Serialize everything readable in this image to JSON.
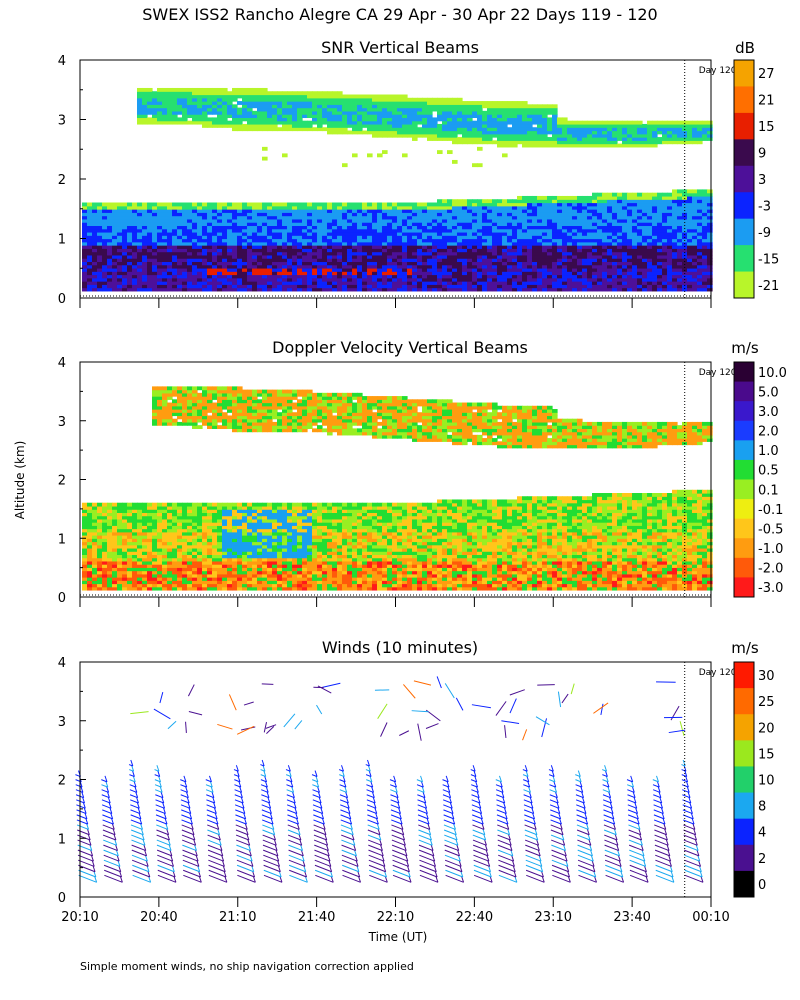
{
  "title": "SWEX ISS2 Rancho Alegre CA  29 Apr - 30 Apr 22 Days 119 - 120",
  "yaxis_label": "Altitude (km)",
  "xaxis_label": "Time (UT)",
  "footnote": "Simple moment winds, no ship navigation correction applied",
  "day_marker_label": "Day 120",
  "panels": [
    {
      "title": "SNR Vertical Beams",
      "unit": "dB"
    },
    {
      "title": "Doppler Velocity Vertical Beams",
      "unit": "m/s"
    },
    {
      "title": "Winds (10 minutes)",
      "unit": "m/s"
    }
  ],
  "chart_data": [
    {
      "type": "heatmap",
      "title": "SNR Vertical Beams",
      "xlabel": "",
      "ylabel": "Altitude (km)",
      "x_ticks": [
        "20:10",
        "20:40",
        "21:10",
        "21:40",
        "22:10",
        "22:40",
        "23:10",
        "23:40",
        "00:10"
      ],
      "y_ticks": [
        0,
        1,
        2,
        3,
        4
      ],
      "ylim": [
        0,
        4
      ],
      "colorbar": {
        "unit": "dB",
        "labels": [
          "27",
          "21",
          "15",
          "9",
          "3",
          "-3",
          "-9",
          "-15",
          "-21"
        ],
        "colors": [
          "#f5a300",
          "#ff6f00",
          "#e81f00",
          "#3a0a4d",
          "#4d1099",
          "#0b23ff",
          "#1b9cf2",
          "#26e070",
          "#b8f52a"
        ]
      },
      "layers": [
        {
          "description": "upper cloud layer",
          "altitude_km": [
            2.6,
            3.6
          ],
          "snr_db": [
            -21,
            -9
          ]
        },
        {
          "description": "boundary layer",
          "altitude_km": [
            0.1,
            1.8
          ],
          "snr_db": [
            -15,
            15
          ]
        }
      ],
      "day_boundary": "00:00"
    },
    {
      "type": "heatmap",
      "title": "Doppler Velocity Vertical Beams",
      "xlabel": "",
      "ylabel": "Altitude (km)",
      "x_ticks": [
        "20:10",
        "20:40",
        "21:10",
        "21:40",
        "22:10",
        "22:40",
        "23:10",
        "23:40",
        "00:10"
      ],
      "y_ticks": [
        0,
        1,
        2,
        3,
        4
      ],
      "ylim": [
        0,
        4
      ],
      "colorbar": {
        "unit": "m/s",
        "labels": [
          "10.0",
          "5.0",
          "3.0",
          "2.0",
          "1.0",
          "0.5",
          "0.1",
          "-0.1",
          "-0.5",
          "-1.0",
          "-2.0",
          "-3.0"
        ],
        "colors": [
          "#2a0033",
          "#4a0a8c",
          "#3a18cc",
          "#1a3cff",
          "#19a0f0",
          "#22dd33",
          "#99ee22",
          "#eeee11",
          "#ffc61a",
          "#ff9c10",
          "#ff5a0a",
          "#ff1a1a"
        ]
      },
      "layers": [
        {
          "description": "upper cloud layer",
          "altitude_km": [
            2.6,
            3.6
          ],
          "velocity_ms": [
            -1.0,
            0.1
          ]
        },
        {
          "description": "boundary layer",
          "altitude_km": [
            0.1,
            1.8
          ],
          "velocity_ms": [
            -3.0,
            1.0
          ]
        }
      ],
      "day_boundary": "00:00"
    },
    {
      "type": "scatter",
      "title": "Winds (10 minutes)",
      "xlabel": "Time (UT)",
      "ylabel": "Altitude (km)",
      "x_ticks": [
        "20:10",
        "20:40",
        "21:10",
        "21:40",
        "22:10",
        "22:40",
        "23:10",
        "23:40",
        "00:10"
      ],
      "y_ticks": [
        0,
        1,
        2,
        3,
        4
      ],
      "ylim": [
        0,
        4
      ],
      "colorbar": {
        "unit": "m/s",
        "labels": [
          "30",
          "25",
          "20",
          "15",
          "10",
          "8",
          "4",
          "2",
          "0"
        ],
        "colors": [
          "#ff1a00",
          "#ff6a00",
          "#f5a300",
          "#9be81e",
          "#22d06a",
          "#1ba8f0",
          "#0b23ff",
          "#4a1090",
          "#000000"
        ]
      },
      "profile_times": [
        "20:10",
        "20:20",
        "20:30",
        "20:40",
        "20:50",
        "21:00",
        "21:10",
        "21:20",
        "21:30",
        "21:40",
        "21:50",
        "22:00",
        "22:10",
        "22:20",
        "22:30",
        "22:40",
        "22:50",
        "23:00",
        "23:10",
        "23:20",
        "23:30",
        "23:40",
        "23:50",
        "00:00",
        "00:10"
      ],
      "low_altitude_range_km": [
        0.2,
        2.3
      ],
      "upper_altitude_range_km": [
        2.8,
        3.7
      ],
      "typical_speed_ms": [
        2,
        10
      ],
      "day_boundary": "00:00"
    }
  ]
}
